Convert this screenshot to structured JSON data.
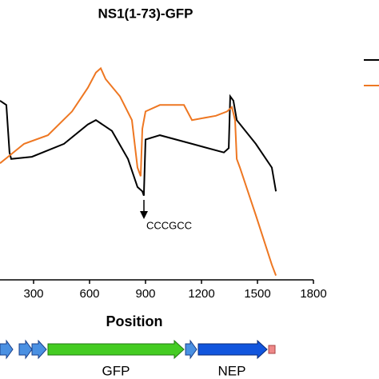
{
  "chart_data": {
    "type": "line",
    "title": "NS1(1-73)-GFP",
    "x_label": "Position",
    "annotation": "CCCGCC",
    "annotation_x": 900,
    "gene_labels": [
      "GFP",
      "NEP"
    ],
    "xlim": [
      120,
      1800
    ],
    "xticks": [
      300,
      600,
      900,
      1200,
      1500,
      1800
    ],
    "ylim": [
      0,
      100
    ],
    "series": [
      {
        "color": "#000000",
        "x": [
          120,
          154,
          171,
          180,
          291,
          463,
          591,
          634,
          720,
          806,
          857,
          883,
          891,
          900,
          977,
          1149,
          1320,
          1346,
          1354,
          1371,
          1389,
          1491,
          1577,
          1599
        ],
        "values": [
          83,
          81,
          59,
          56,
          57,
          63,
          72,
          74,
          69,
          56,
          43,
          41,
          39,
          65,
          67,
          63,
          59,
          61,
          85,
          83,
          74,
          63,
          52,
          41
        ]
      },
      {
        "color": "#ee7722",
        "x": [
          120,
          163,
          249,
          377,
          506,
          591,
          634,
          660,
          686,
          763,
          827,
          857,
          874,
          883,
          900,
          977,
          1106,
          1149,
          1277,
          1337,
          1363,
          1380,
          1389,
          1406,
          1491,
          1577,
          1599
        ],
        "values": [
          54,
          57,
          63,
          67,
          78,
          89,
          96,
          98,
          93,
          85,
          74,
          52,
          48,
          70,
          78,
          81,
          81,
          74,
          76,
          78,
          80,
          74,
          56,
          52,
          30,
          7,
          2
        ]
      }
    ]
  }
}
